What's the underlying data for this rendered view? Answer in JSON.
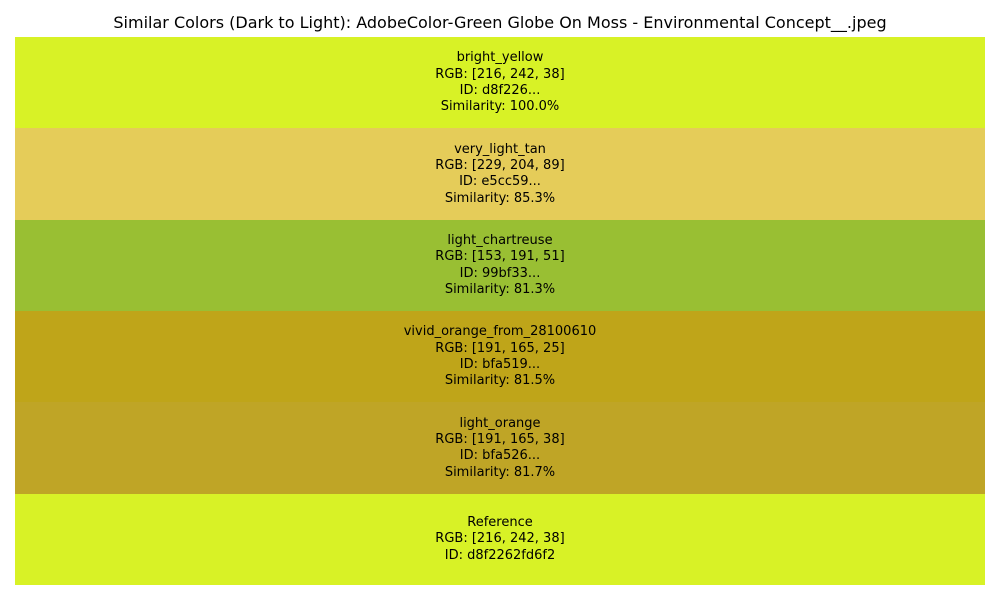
{
  "chart_data": {
    "type": "table",
    "title": "Similar Colors (Dark to Light): AdobeColor-Green Globe On Moss - Environmental Concept__.jpeg",
    "swatches": [
      {
        "name": "bright_yellow",
        "rgb_label": "RGB: [216, 242, 38]",
        "id_label": "ID: d8f226...",
        "similarity_label": "Similarity: 100.0%",
        "color": "#d8f226"
      },
      {
        "name": "very_light_tan",
        "rgb_label": "RGB: [229, 204, 89]",
        "id_label": "ID: e5cc59...",
        "similarity_label": "Similarity: 85.3%",
        "color": "#e5cc59"
      },
      {
        "name": "light_chartreuse",
        "rgb_label": "RGB: [153, 191, 51]",
        "id_label": "ID: 99bf33...",
        "similarity_label": "Similarity: 81.3%",
        "color": "#99bf33"
      },
      {
        "name": "vivid_orange_from_28100610",
        "rgb_label": "RGB: [191, 165, 25]",
        "id_label": "ID: bfa519...",
        "similarity_label": "Similarity: 81.5%",
        "color": "#bfa519"
      },
      {
        "name": "light_orange",
        "rgb_label": "RGB: [191, 165, 38]",
        "id_label": "ID: bfa526...",
        "similarity_label": "Similarity: 81.7%",
        "color": "#bfa526"
      },
      {
        "name": "Reference",
        "rgb_label": "RGB: [216, 242, 38]",
        "id_label": "ID: d8f2262fd6f2",
        "similarity_label": "",
        "color": "#d8f226"
      }
    ]
  }
}
